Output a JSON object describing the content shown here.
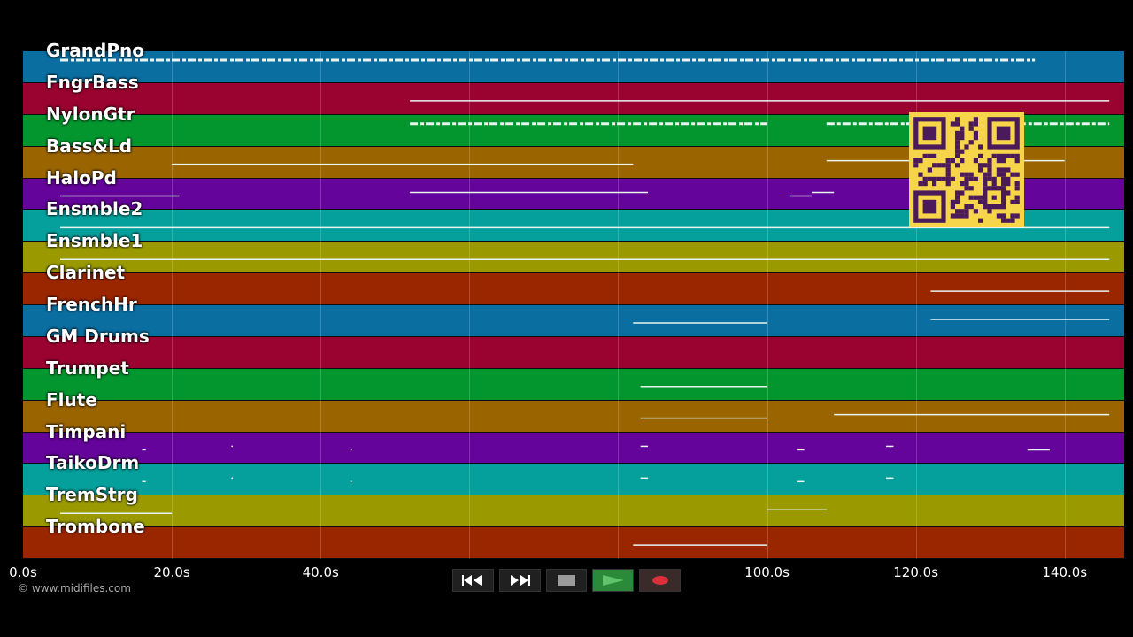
{
  "tracks": [
    {
      "name": "GrandPno",
      "color": "#0a6ea0"
    },
    {
      "name": "FngrBass",
      "color": "#9a0230"
    },
    {
      "name": "NylonGtr",
      "color": "#03962e"
    },
    {
      "name": "Bass&Ld",
      "color": "#9a6400"
    },
    {
      "name": "HaloPd",
      "color": "#64049a"
    },
    {
      "name": "Ensmble2",
      "color": "#06a09c"
    },
    {
      "name": "Ensmble1",
      "color": "#9a9a00"
    },
    {
      "name": "Clarinet",
      "color": "#9a2600"
    },
    {
      "name": "FrenchHr",
      "color": "#0a6ea0"
    },
    {
      "name": "GM Drums",
      "color": "#9a0230"
    },
    {
      "name": "Trumpet",
      "color": "#03962e"
    },
    {
      "name": "Flute",
      "color": "#9a6400"
    },
    {
      "name": "Timpani",
      "color": "#64049a"
    },
    {
      "name": "TaikoDrm",
      "color": "#06a09c"
    },
    {
      "name": "TremStrg",
      "color": "#9a9a00"
    },
    {
      "name": "Trombone",
      "color": "#9a2600"
    }
  ],
  "time_axis": {
    "unit": "s",
    "max_seconds": 148,
    "ticks": [
      {
        "value": 0,
        "label": "0.0s"
      },
      {
        "value": 20,
        "label": "20.0s"
      },
      {
        "value": 40,
        "label": "40.0s"
      },
      {
        "value": 100,
        "label": "100.0s"
      },
      {
        "value": 120,
        "label": "120.0s"
      },
      {
        "value": 140,
        "label": "140.0s"
      }
    ],
    "gridlines_seconds": [
      20,
      40,
      60,
      80,
      100,
      120,
      140
    ]
  },
  "copyright": "© www.midifiles.com",
  "transport": {
    "rewind_icon": "rewind-icon",
    "forward_icon": "fast-forward-icon",
    "stop_icon": "stop-icon",
    "play_icon": "play-icon",
    "record_icon": "record-icon",
    "play_color": "#5ec36a",
    "record_color": "#d9303a"
  },
  "qr_code": {
    "icon": "qr-code-icon",
    "color": "#f6d54a",
    "ink": "#4a1a5a"
  }
}
